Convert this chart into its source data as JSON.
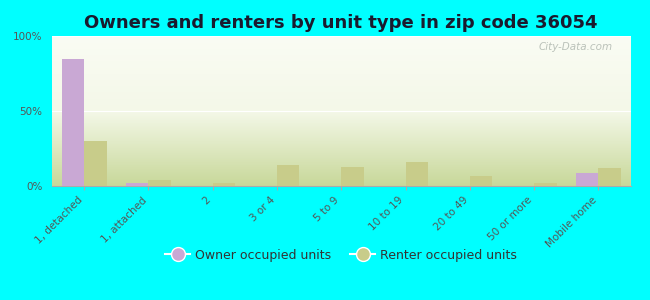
{
  "title": "Owners and renters by unit type in zip code 36054",
  "categories": [
    "1, detached",
    "1, attached",
    "2",
    "3 or 4",
    "5 to 9",
    "10 to 19",
    "20 to 49",
    "50 or more",
    "Mobile home"
  ],
  "owner_values": [
    85,
    2,
    0,
    0,
    0,
    0,
    0,
    0,
    9
  ],
  "renter_values": [
    30,
    4,
    2,
    14,
    13,
    16,
    7,
    2,
    12
  ],
  "owner_color": "#c9a8d4",
  "renter_color": "#c8cc8a",
  "background_color": "#00ffff",
  "ylim": [
    0,
    100
  ],
  "yticks": [
    0,
    50,
    100
  ],
  "ytick_labels": [
    "0%",
    "50%",
    "100%"
  ],
  "bar_width": 0.35,
  "legend_owner": "Owner occupied units",
  "legend_renter": "Renter occupied units",
  "title_fontsize": 13,
  "tick_fontsize": 7.5,
  "legend_fontsize": 9,
  "watermark": "City-Data.com"
}
